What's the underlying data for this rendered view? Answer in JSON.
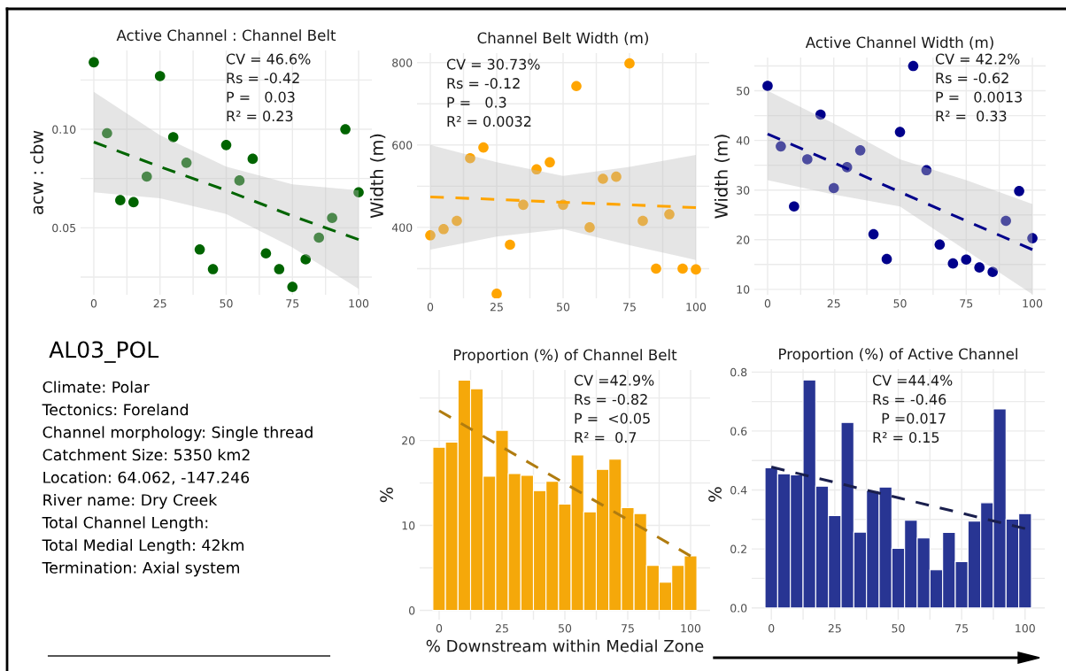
{
  "chart_data": [
    {
      "type": "scatter",
      "title": "Active Channel : Channel Belt",
      "ylabel": "acw : cbw",
      "grid": true,
      "xlim": [
        -5,
        105
      ],
      "xticks": [
        0,
        {
          "value": 12.5,
          "label": null
        },
        25,
        {
          "value": 37.5,
          "label": null
        },
        50,
        {
          "value": 62.5,
          "label": null
        },
        75,
        {
          "value": 87.5,
          "label": null
        },
        100
      ],
      "ylim": [
        0.016,
        0.14
      ],
      "yticks": [
        {
          "value": 0.025,
          "label": null
        },
        {
          "value": 0.05,
          "label": "0.05"
        },
        {
          "value": 0.075,
          "label": null
        },
        {
          "value": 0.1,
          "label": "0.10"
        },
        {
          "value": 0.125,
          "label": null
        }
      ],
      "annotations": [
        "CV = 46.6%",
        "Rs = -0.42",
        "P =   0.03",
        "R² = 0.23"
      ],
      "series": [
        {
          "type": "scatter",
          "marker": "circle",
          "color": "#006400",
          "x": [
            0,
            5,
            10,
            15,
            20,
            25,
            30,
            35,
            40,
            45,
            50,
            55,
            60,
            65,
            70,
            75,
            80,
            85,
            90,
            95,
            100
          ],
          "values": [
            0.134,
            0.098,
            0.064,
            0.063,
            0.076,
            0.127,
            0.096,
            0.083,
            0.039,
            0.029,
            0.092,
            0.074,
            0.085,
            0.037,
            0.029,
            0.02,
            0.034,
            0.045,
            0.055,
            0.1,
            0.068
          ]
        },
        {
          "type": "line",
          "color": "#006400",
          "line_style": "dashed",
          "x": [
            0,
            25,
            50,
            75,
            100
          ],
          "values": [
            0.0935,
            0.081,
            0.069,
            0.056,
            0.044
          ],
          "lower": [
            0.068,
            0.065,
            0.057,
            0.04,
            0.019
          ],
          "upper": [
            0.119,
            0.097,
            0.081,
            0.072,
            0.069
          ]
        }
      ]
    },
    {
      "type": "scatter",
      "title": "Channel Belt Width (m)",
      "ylabel": "Width (m)",
      "grid": true,
      "xlim": [
        -5,
        105
      ],
      "xticks": [
        0,
        {
          "value": 12.5,
          "label": null
        },
        25,
        {
          "value": 37.5,
          "label": null
        },
        50,
        {
          "value": 62.5,
          "label": null
        },
        75,
        {
          "value": 87.5,
          "label": null
        },
        100
      ],
      "ylim": [
        228,
        823
      ],
      "yticks": [
        {
          "value": 300,
          "label": null
        },
        400,
        {
          "value": 500,
          "label": null
        },
        600,
        {
          "value": 700,
          "label": null
        },
        800
      ],
      "annotations": [
        "CV = 30.73%",
        "Rs = -0.12",
        "P =   0.3",
        "R² = 0.0032"
      ],
      "series": [
        {
          "type": "scatter",
          "marker": "circle",
          "color": "#ffa500",
          "x": [
            0,
            5,
            10,
            15,
            20,
            25,
            30,
            35,
            40,
            45,
            50,
            55,
            60,
            65,
            70,
            75,
            80,
            85,
            90,
            95,
            100
          ],
          "values": [
            381,
            396,
            416,
            568,
            594,
            239,
            358,
            455,
            541,
            558,
            455,
            743,
            400,
            518,
            523,
            798,
            416,
            300,
            432,
            300,
            298
          ]
        },
        {
          "type": "line",
          "color": "#ffa500",
          "line_style": "dashed",
          "x": [
            0,
            25,
            50,
            75,
            100
          ],
          "values": [
            474,
            468,
            461,
            455,
            448
          ],
          "lower": [
            346,
            378,
            396,
            357,
            321
          ],
          "upper": [
            600,
            558,
            525,
            547,
            576
          ]
        }
      ]
    },
    {
      "type": "scatter",
      "title": "Active Channel Width (m)",
      "ylabel": "Width (m)",
      "grid": true,
      "xlim": [
        -5,
        105
      ],
      "xticks": [
        0,
        {
          "value": 12.5,
          "label": null
        },
        25,
        {
          "value": 37.5,
          "label": null
        },
        50,
        {
          "value": 62.5,
          "label": null
        },
        75,
        {
          "value": 87.5,
          "label": null
        },
        100
      ],
      "ylim": [
        8.9,
        56.7
      ],
      "yticks": [
        10,
        {
          "value": 15,
          "label": null
        },
        20,
        {
          "value": 25,
          "label": null
        },
        30,
        {
          "value": 35,
          "label": null
        },
        40,
        {
          "value": 45,
          "label": null
        },
        50,
        {
          "value": 55,
          "label": null
        }
      ],
      "annotations": [
        "CV = 42.2%",
        "Rs = -0.62",
        "P =   0.0013",
        "R² =  0.33"
      ],
      "series": [
        {
          "type": "scatter",
          "marker": "circle",
          "color": "#00008b",
          "x": [
            0,
            5,
            10,
            15,
            20,
            25,
            30,
            35,
            40,
            45,
            50,
            55,
            60,
            65,
            70,
            75,
            80,
            85,
            90,
            95,
            100
          ],
          "values": [
            51,
            38.8,
            26.7,
            36.2,
            45.2,
            30.4,
            34.6,
            38,
            21.1,
            16.1,
            41.7,
            55,
            34,
            19,
            15.2,
            16,
            14.4,
            13.5,
            23.8,
            29.8,
            20.3
          ]
        },
        {
          "type": "line",
          "color": "#00008b",
          "line_style": "dashed",
          "x": [
            0,
            25,
            50,
            75,
            100
          ],
          "values": [
            41.3,
            35.5,
            29.6,
            23.8,
            18
          ],
          "lower": [
            32,
            29.1,
            26.7,
            17.8,
            9
          ],
          "upper": [
            50,
            43.4,
            36.2,
            32,
            27.2
          ]
        }
      ]
    },
    {
      "type": "other",
      "title": "AL03_POL",
      "annotations": [
        "Climate: Polar",
        "Tectonics: Foreland",
        "Channel morphology: Single thread",
        "Catchment Size: 5350 km2",
        "Location: 64.062, -147.246",
        "River name: Dry Creek",
        "Total Channel Length:",
        "Total Medial Length: 42km",
        "Termination: Axial system"
      ]
    },
    {
      "type": "histogram",
      "title": "Proportion (%) of Channel Belt",
      "ylabel": "%",
      "xlabel": "% Downstream within Medial Zone",
      "grid": true,
      "xlim": [
        -7.75,
        107.75
      ],
      "xticks": [
        0,
        {
          "value": 12.5,
          "label": null
        },
        25,
        {
          "value": 37.5,
          "label": null
        },
        50,
        {
          "value": 62.5,
          "label": null
        },
        75,
        {
          "value": 87.5,
          "label": null
        },
        100
      ],
      "ylim": [
        -1.1,
        28.3
      ],
      "yticks": [
        0,
        {
          "value": 5,
          "label": null
        },
        10,
        {
          "value": 15,
          "label": null
        },
        20,
        {
          "value": 25,
          "label": null
        }
      ],
      "annotations": [
        "CV =42.9%",
        "Rs = -0.82",
        "P =  <0.05",
        "R² =  0.7"
      ],
      "series": [
        {
          "type": "histogram",
          "color": "#f5a80a",
          "bins": [
            -2.5,
            2.5,
            7.5,
            12.5,
            17.5,
            22.5,
            27.5,
            32.5,
            37.5,
            42.5,
            47.5,
            52.5,
            57.5,
            62.5,
            67.5,
            72.5,
            77.5,
            82.5,
            87.5,
            92.5,
            97.5,
            102.5
          ],
          "values": [
            19.2,
            19.8,
            27.1,
            26.1,
            15.8,
            21.2,
            16.1,
            15.9,
            14.1,
            15.2,
            12.5,
            18.3,
            11.6,
            16.6,
            17.8,
            12.1,
            11.4,
            5.3,
            3.3,
            5.3,
            6.4
          ]
        },
        {
          "type": "line",
          "color": "#b07c10",
          "line_style": "dashed",
          "x": [
            0,
            100
          ],
          "values": [
            23.5,
            6.4
          ]
        }
      ]
    },
    {
      "type": "histogram",
      "title": "Proportion (%) of Active Channel",
      "ylabel": "%",
      "grid": true,
      "xlim": [
        -7.75,
        107.75
      ],
      "xticks": [
        0,
        {
          "value": 12.5,
          "label": null
        },
        25,
        {
          "value": 37.5,
          "label": null
        },
        50,
        {
          "value": 62.5,
          "label": null
        },
        75,
        {
          "value": 87.5,
          "label": null
        },
        100
      ],
      "ylim": [
        -0.04,
        0.81
      ],
      "yticks": [
        {
          "value": 0,
          "label": "0.0"
        },
        {
          "value": 0.1,
          "label": null
        },
        {
          "value": 0.2,
          "label": "0.2"
        },
        {
          "value": 0.3,
          "label": null
        },
        {
          "value": 0.4,
          "label": "0.4"
        },
        {
          "value": 0.5,
          "label": null
        },
        {
          "value": 0.6,
          "label": "0.6"
        },
        {
          "value": 0.7,
          "label": null
        },
        {
          "value": 0.8,
          "label": "0.8"
        }
      ],
      "annotations": [
        "CV =44.4%",
        "Rs = -0.46",
        "  P =0.017",
        "R² = 0.15"
      ],
      "series": [
        {
          "type": "histogram",
          "color": "#283593",
          "bins": [
            -2.5,
            2.5,
            7.5,
            12.5,
            17.5,
            22.5,
            27.5,
            32.5,
            37.5,
            42.5,
            47.5,
            52.5,
            57.5,
            62.5,
            67.5,
            72.5,
            77.5,
            82.5,
            87.5,
            92.5,
            97.5,
            102.5
          ],
          "values": [
            0.475,
            0.455,
            0.451,
            0.773,
            0.413,
            0.313,
            0.629,
            0.257,
            0.398,
            0.41,
            0.202,
            0.297,
            0.237,
            0.129,
            0.256,
            0.157,
            0.294,
            0.357,
            0.675,
            0.301,
            0.32
          ]
        },
        {
          "type": "line",
          "color": "#1a1f4d",
          "line_style": "dashed",
          "x": [
            0,
            100
          ],
          "values": [
            0.478,
            0.269
          ]
        }
      ]
    }
  ]
}
